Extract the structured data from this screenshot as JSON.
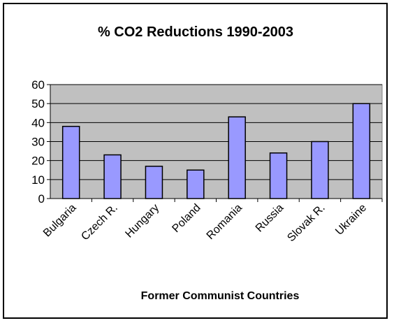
{
  "chart_data": {
    "type": "bar",
    "title": "% CO2 Reductions 1990-2003",
    "xlabel": "Former Communist Countries",
    "ylabel": "",
    "categories": [
      "Bulgaria",
      "Czech R.",
      "Hungary",
      "Poland",
      "Romania",
      "Russia",
      "Slovak R.",
      "Ukraine"
    ],
    "values": [
      38,
      23,
      17,
      15,
      43,
      24,
      30,
      50
    ],
    "ylim": [
      0,
      60
    ],
    "yticks": [
      "0",
      "10",
      "20",
      "30",
      "40",
      "50",
      "60"
    ],
    "grid": true,
    "legend": "none",
    "colors": {
      "bar_fill": "#9999ff",
      "bar_stroke": "#000000",
      "plot_background": "#c0c0c0",
      "gridline": "#000000"
    }
  }
}
